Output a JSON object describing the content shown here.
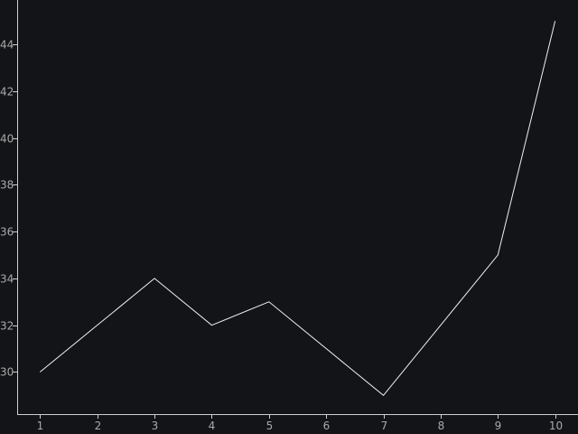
{
  "colors": {
    "background": "#131418",
    "axis": "#cfcfcf",
    "tick_text": "#a9a9a9",
    "series": "#f0f0f0"
  },
  "chart_data": {
    "type": "line",
    "title": "",
    "xlabel": "",
    "ylabel": "",
    "grid": false,
    "legend": "none",
    "x": [
      1,
      2,
      3,
      4,
      5,
      6,
      7,
      8,
      9,
      10
    ],
    "series": [
      {
        "values": [
          30,
          32,
          34,
          32,
          33,
          31,
          29,
          32,
          35,
          45
        ]
      }
    ],
    "xlim": [
      0.6,
      10.4
    ],
    "ylim": [
      28.2,
      45.9
    ],
    "x_ticks": [
      1,
      2,
      3,
      4,
      5,
      6,
      7,
      8,
      9,
      10
    ],
    "x_tick_labels": [
      "1",
      "2",
      "3",
      "4",
      "5",
      "6",
      "7",
      "8",
      "9",
      "10"
    ],
    "y_ticks": [
      30,
      32,
      34,
      36,
      38,
      40,
      42,
      44
    ],
    "y_tick_labels": [
      "30",
      "32",
      "34",
      "36",
      "38",
      "40",
      "42",
      "44"
    ]
  }
}
